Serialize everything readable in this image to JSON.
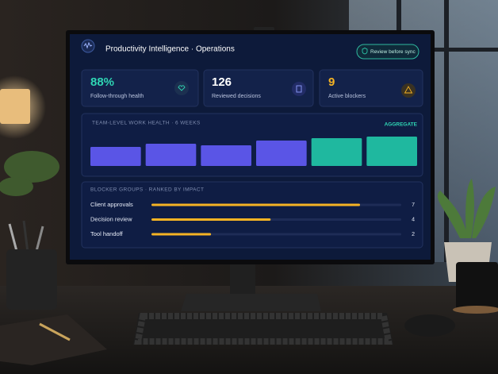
{
  "header": {
    "title": "Productivity Intelligence · Operations",
    "button": "Review before sync"
  },
  "kpis": [
    {
      "value": "88%",
      "label": "Follow-through health",
      "color": "#2fd6b4"
    },
    {
      "value": "126",
      "label": "Reviewed decisions",
      "color": "#ffffff"
    },
    {
      "value": "9",
      "label": "Active blockers",
      "color": "#f5b324"
    }
  ],
  "chart_data": [
    {
      "type": "bar",
      "title": "TEAM-LEVEL WORK HEALTH · 6 WEEKS",
      "badge": "AGGREGATE",
      "values": [
        24,
        28,
        26,
        32,
        35,
        37
      ],
      "colors": [
        "#5a55e6",
        "#5a55e6",
        "#5a55e6",
        "#5a55e6",
        "#1fb89f",
        "#1fb89f"
      ]
    },
    {
      "type": "hbar",
      "title": "BLOCKER GROUPS · RANKED BY IMPACT",
      "categories": [
        "Client approvals",
        "Decision review",
        "Tool handoff"
      ],
      "values": [
        7,
        4,
        2
      ],
      "color": "#f5b324"
    }
  ]
}
